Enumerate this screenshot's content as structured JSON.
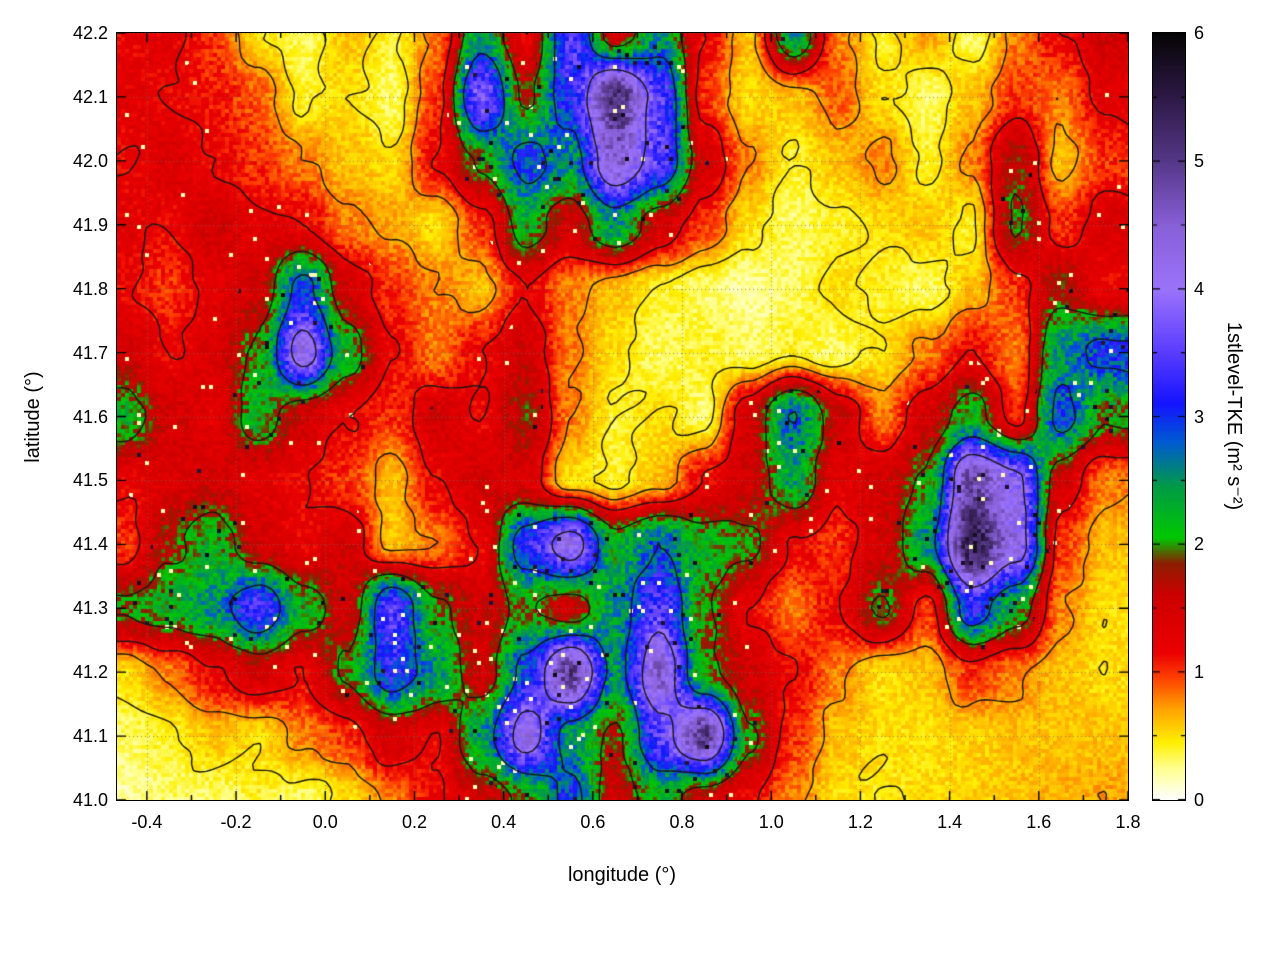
{
  "chart_data": {
    "type": "heatmap",
    "title": "",
    "xlabel": "longitude (°)",
    "ylabel": "latitude (°)",
    "colorbar_label": "1stlevel-TKE (m² s⁻²)",
    "xlim": [
      -0.467,
      1.8
    ],
    "ylim": [
      41.0,
      42.2
    ],
    "clim": [
      0,
      6
    ],
    "grid_style": "dotted",
    "overlay": "terrain contour lines (black)",
    "x_ticks": {
      "values": [
        -0.4,
        -0.2,
        0.0,
        0.2,
        0.4,
        0.6,
        0.8,
        1.0,
        1.2,
        1.4,
        1.6,
        1.8
      ],
      "labels": [
        "-0.4",
        "-0.2",
        "0.0",
        "0.2",
        "0.4",
        "0.6",
        "0.8",
        "1.0",
        "1.2",
        "1.4",
        "1.6",
        "1.8"
      ]
    },
    "y_ticks": {
      "values": [
        41.0,
        41.1,
        41.2,
        41.3,
        41.4,
        41.5,
        41.6,
        41.7,
        41.8,
        41.9,
        42.0,
        42.1,
        42.2
      ],
      "labels": [
        "41.0",
        "41.1",
        "41.2",
        "41.3",
        "41.4",
        "41.5",
        "41.6",
        "41.7",
        "41.8",
        "41.9",
        "42.0",
        "42.1",
        "42.2"
      ]
    },
    "cb_ticks": {
      "values": [
        0,
        1,
        2,
        3,
        4,
        5,
        6
      ],
      "labels": [
        "0",
        "1",
        "2",
        "3",
        "4",
        "5",
        "6"
      ]
    },
    "grid": {
      "lon0": -0.45,
      "dlon": 0.1,
      "lat_top": 42.2,
      "dlat": 0.1
    },
    "values_rows_top_to_bottom": [
      [
        1.2,
        1.3,
        1.0,
        0.5,
        0.3,
        0.6,
        0.4,
        0.8,
        2.5,
        1.2,
        3.5,
        1.5,
        2.5,
        1.2,
        0.6,
        2.5,
        0.8,
        0.4,
        0.7,
        0.3,
        0.8,
        1.2,
        1.5
      ],
      [
        1.3,
        1.2,
        1.1,
        0.9,
        0.4,
        0.5,
        0.3,
        1.0,
        3.8,
        1.8,
        3.2,
        5.2,
        3.5,
        1.0,
        0.5,
        0.6,
        0.9,
        0.5,
        0.3,
        0.6,
        1.0,
        0.8,
        1.3
      ],
      [
        1.2,
        1.4,
        1.2,
        1.0,
        0.8,
        0.6,
        0.5,
        1.2,
        2.0,
        3.0,
        2.5,
        4.5,
        3.5,
        1.5,
        0.8,
        0.4,
        0.6,
        0.8,
        0.4,
        0.8,
        1.8,
        0.6,
        1.0
      ],
      [
        1.3,
        1.2,
        1.5,
        1.3,
        1.2,
        0.8,
        0.7,
        0.5,
        1.0,
        2.2,
        1.5,
        2.5,
        1.5,
        1.0,
        0.5,
        0.3,
        0.4,
        0.5,
        0.6,
        0.4,
        2.0,
        1.0,
        1.4
      ],
      [
        1.2,
        1.0,
        1.3,
        1.5,
        3.0,
        1.5,
        1.0,
        0.8,
        0.6,
        1.2,
        0.8,
        0.6,
        0.4,
        0.3,
        0.2,
        0.3,
        0.5,
        0.4,
        0.3,
        0.6,
        1.0,
        1.8,
        1.2
      ],
      [
        1.5,
        1.2,
        1.4,
        2.0,
        4.2,
        2.2,
        1.2,
        0.8,
        1.2,
        1.5,
        0.8,
        0.5,
        0.3,
        0.4,
        0.3,
        0.4,
        0.3,
        0.5,
        0.8,
        1.2,
        0.8,
        2.5,
        3.0
      ],
      [
        2.2,
        1.5,
        1.3,
        2.2,
        1.5,
        1.2,
        1.0,
        1.5,
        1.2,
        1.8,
        0.8,
        0.4,
        0.5,
        0.3,
        1.5,
        2.8,
        1.6,
        0.8,
        1.5,
        2.2,
        1.0,
        3.0,
        2.0
      ],
      [
        1.2,
        1.4,
        1.5,
        1.3,
        1.2,
        1.0,
        0.6,
        1.2,
        1.5,
        1.4,
        0.5,
        0.4,
        0.6,
        1.2,
        1.5,
        2.4,
        1.3,
        1.5,
        2.0,
        4.8,
        4.0,
        1.5,
        0.8
      ],
      [
        1.0,
        1.8,
        2.2,
        1.5,
        1.2,
        1.5,
        0.6,
        0.8,
        1.2,
        3.2,
        4.2,
        2.2,
        2.8,
        2.2,
        2.0,
        1.2,
        1.0,
        1.5,
        2.5,
        5.5,
        4.2,
        1.0,
        0.6
      ],
      [
        2.0,
        2.2,
        2.5,
        3.4,
        2.2,
        1.5,
        3.5,
        2.0,
        1.5,
        2.0,
        1.5,
        2.5,
        3.5,
        2.0,
        1.2,
        0.8,
        1.2,
        2.0,
        1.0,
        3.2,
        2.2,
        0.8,
        0.5
      ],
      [
        0.5,
        0.8,
        1.2,
        1.5,
        1.2,
        2.0,
        3.2,
        2.5,
        1.5,
        3.0,
        5.0,
        2.5,
        4.5,
        2.0,
        1.5,
        1.2,
        0.8,
        0.5,
        0.6,
        1.0,
        0.8,
        0.6,
        0.5
      ],
      [
        0.3,
        0.4,
        0.6,
        0.5,
        0.8,
        1.0,
        1.5,
        1.2,
        2.5,
        4.2,
        2.5,
        1.8,
        3.5,
        5.0,
        2.0,
        1.0,
        0.6,
        0.5,
        0.5,
        0.55,
        0.6,
        0.6,
        0.6
      ],
      [
        0.2,
        0.3,
        0.3,
        0.4,
        0.3,
        0.5,
        0.8,
        1.2,
        1.5,
        2.0,
        3.0,
        1.5,
        2.2,
        1.5,
        1.2,
        0.8,
        0.5,
        0.45,
        0.5,
        0.55,
        0.6,
        0.65,
        0.7
      ]
    ],
    "contour_levels": [
      0.45,
      0.75,
      1.2,
      1.9,
      2.8,
      3.8
    ],
    "palette": [
      [
        0.0,
        255,
        255,
        255
      ],
      [
        0.25,
        255,
        255,
        140
      ],
      [
        0.45,
        255,
        238,
        0
      ],
      [
        0.7,
        255,
        165,
        0
      ],
      [
        0.95,
        255,
        64,
        0
      ],
      [
        1.15,
        235,
        0,
        0
      ],
      [
        1.6,
        205,
        0,
        0
      ],
      [
        1.85,
        140,
        30,
        0
      ],
      [
        2.05,
        0,
        200,
        0
      ],
      [
        2.45,
        0,
        155,
        70
      ],
      [
        2.8,
        0,
        90,
        210
      ],
      [
        3.1,
        20,
        20,
        255
      ],
      [
        3.5,
        90,
        60,
        255
      ],
      [
        4.0,
        155,
        115,
        250
      ],
      [
        4.5,
        135,
        95,
        215
      ],
      [
        5.0,
        85,
        55,
        135
      ],
      [
        5.5,
        45,
        25,
        70
      ],
      [
        6.0,
        5,
        5,
        5
      ]
    ],
    "legend_position": "right-colorbar"
  }
}
